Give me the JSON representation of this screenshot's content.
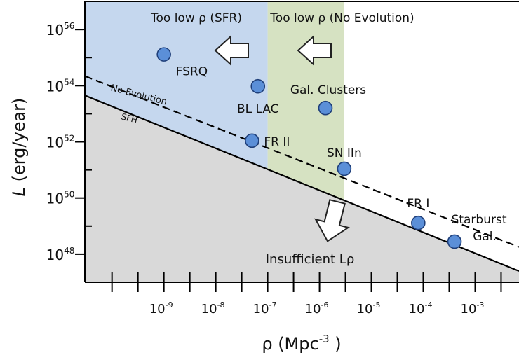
{
  "chart_data": {
    "type": "scatter",
    "xlabel": "ρ (Mpc",
    "xlabel_exp": "-3",
    "xlabel_close": " )",
    "ylabel_var": "L",
    "ylabel_rest": " (erg/year)",
    "x_scale": "log",
    "y_scale": "log",
    "xlim": [
      3e-11,
      0.007
    ],
    "ylim": [
      1e+47,
      1e+57
    ],
    "x_ticks": [
      1e-09,
      1e-08,
      1e-07,
      1e-06,
      1e-05,
      0.0001,
      0.001
    ],
    "x_tick_labels": [
      {
        "base": "10",
        "exp": "-9"
      },
      {
        "base": "10",
        "exp": "-8"
      },
      {
        "base": "10",
        "exp": "-7"
      },
      {
        "base": "10",
        "exp": "-6"
      },
      {
        "base": "10",
        "exp": "-5"
      },
      {
        "base": "10",
        "exp": "-4"
      },
      {
        "base": "10",
        "exp": "-3"
      }
    ],
    "y_ticks": [
      1e+48,
      1e+50,
      1e+52,
      1e+54,
      1e+56
    ],
    "y_tick_labels": [
      {
        "base": "10",
        "exp": "48"
      },
      {
        "base": "10",
        "exp": "50"
      },
      {
        "base": "10",
        "exp": "52"
      },
      {
        "base": "10",
        "exp": "54"
      },
      {
        "base": "10",
        "exp": "56"
      }
    ],
    "points": [
      {
        "label": "FSRQ",
        "x": 1e-09,
        "y": 1.3e+55
      },
      {
        "label": "BL LAC",
        "x": 6.5e-08,
        "y": 9.5e+53
      },
      {
        "label": "FR II",
        "x": 5e-08,
        "y": 1.1e+52
      },
      {
        "label": "Gal. Clusters",
        "x": 1.3e-06,
        "y": 1.6e+53
      },
      {
        "label": "SN IIn",
        "x": 3e-06,
        "y": 1.1e+51
      },
      {
        "label": "FR I",
        "x": 8e-05,
        "y": 1.3e+49
      },
      {
        "label": "Starburst Gal.",
        "label_lines": [
          "Starburst",
          "Gal."
        ],
        "x": 0.0004,
        "y": 2.8e+48
      }
    ],
    "lines": [
      {
        "name": "SFH",
        "style": "solid",
        "x": [
          3e-11,
          0.007
        ],
        "y": [
          4.5e+53,
          2.5e+47
        ]
      },
      {
        "name": "No Evolution",
        "style": "dashed",
        "x": [
          3e-11,
          0.007
        ],
        "y": [
          2.2e+54,
          1.8e+48
        ]
      }
    ],
    "regions": [
      {
        "label": "Too low ρ (SFR)",
        "x_from": 3e-11,
        "x_to": 1e-07,
        "color": "#c5d7ee"
      },
      {
        "label": "Too low ρ (No Evolution)",
        "x_from": 1e-07,
        "x_to": 3e-06,
        "color": "#d6e2c2"
      }
    ],
    "shaded_label": "Insufficient Lρ",
    "colors": {
      "shaded": "#d9d9d9",
      "marker_fill": "#5b8fd8",
      "marker_edge": "#1f3f7a",
      "arrow_fill": "#ffffff"
    }
  }
}
